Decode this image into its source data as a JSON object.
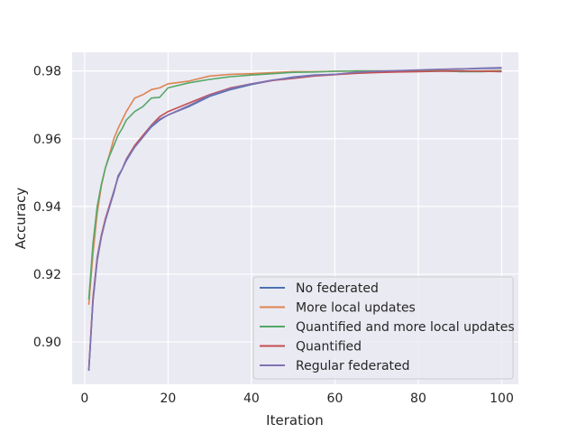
{
  "chart_data": {
    "type": "line",
    "xlabel": "Iteration",
    "ylabel": "Accuracy",
    "xlim": [
      -3,
      104
    ],
    "ylim": [
      0.8875,
      0.9855
    ],
    "xticks": [
      0,
      20,
      40,
      60,
      80,
      100
    ],
    "yticks": [
      0.9,
      0.92,
      0.94,
      0.96,
      0.98
    ],
    "xtick_labels": [
      "0",
      "20",
      "40",
      "60",
      "80",
      "100"
    ],
    "ytick_labels": [
      "0.90",
      "0.92",
      "0.94",
      "0.96",
      "0.98"
    ],
    "grid": true,
    "legend_position": "lower-right",
    "series": [
      {
        "name": "No federated",
        "color": "#4c72b0",
        "points": [
          [
            1,
            0.8915
          ],
          [
            2,
            0.912
          ],
          [
            3,
            0.924
          ],
          [
            4,
            0.931
          ],
          [
            5,
            0.936
          ],
          [
            6,
            0.94
          ],
          [
            7,
            0.944
          ],
          [
            8,
            0.949
          ],
          [
            9,
            0.951
          ],
          [
            10,
            0.9535
          ],
          [
            12,
            0.9575
          ],
          [
            14,
            0.9605
          ],
          [
            16,
            0.9635
          ],
          [
            18,
            0.9655
          ],
          [
            20,
            0.967
          ],
          [
            25,
            0.9695
          ],
          [
            30,
            0.9725
          ],
          [
            35,
            0.9745
          ],
          [
            40,
            0.976
          ],
          [
            45,
            0.9772
          ],
          [
            50,
            0.9782
          ],
          [
            55,
            0.9788
          ],
          [
            60,
            0.979
          ],
          [
            65,
            0.9795
          ],
          [
            70,
            0.9798
          ],
          [
            75,
            0.98
          ],
          [
            80,
            0.9802
          ],
          [
            85,
            0.9804
          ],
          [
            90,
            0.9806
          ],
          [
            95,
            0.9807
          ],
          [
            100,
            0.9808
          ]
        ]
      },
      {
        "name": "More local updates",
        "color": "#dd8452",
        "points": [
          [
            1,
            0.911
          ],
          [
            2,
            0.926
          ],
          [
            3,
            0.938
          ],
          [
            4,
            0.946
          ],
          [
            5,
            0.9515
          ],
          [
            6,
            0.9555
          ],
          [
            7,
            0.96
          ],
          [
            8,
            0.963
          ],
          [
            9,
            0.9655
          ],
          [
            10,
            0.968
          ],
          [
            12,
            0.972
          ],
          [
            14,
            0.973
          ],
          [
            16,
            0.9745
          ],
          [
            18,
            0.975
          ],
          [
            20,
            0.9762
          ],
          [
            25,
            0.977
          ],
          [
            30,
            0.9785
          ],
          [
            35,
            0.979
          ],
          [
            40,
            0.9792
          ],
          [
            45,
            0.9795
          ],
          [
            50,
            0.9798
          ],
          [
            55,
            0.9798
          ],
          [
            60,
            0.9799
          ],
          [
            65,
            0.98
          ],
          [
            70,
            0.98
          ],
          [
            75,
            0.98
          ],
          [
            80,
            0.98
          ],
          [
            85,
            0.9801
          ],
          [
            90,
            0.98
          ],
          [
            95,
            0.98
          ],
          [
            100,
            0.9801
          ]
        ]
      },
      {
        "name": "Quantified and more local updates",
        "color": "#55a868",
        "points": [
          [
            1,
            0.9125
          ],
          [
            2,
            0.929
          ],
          [
            3,
            0.94
          ],
          [
            4,
            0.9465
          ],
          [
            5,
            0.9515
          ],
          [
            6,
            0.955
          ],
          [
            7,
            0.958
          ],
          [
            8,
            0.961
          ],
          [
            9,
            0.963
          ],
          [
            10,
            0.9655
          ],
          [
            12,
            0.968
          ],
          [
            14,
            0.9695
          ],
          [
            16,
            0.972
          ],
          [
            18,
            0.9722
          ],
          [
            20,
            0.975
          ],
          [
            25,
            0.9765
          ],
          [
            30,
            0.9775
          ],
          [
            35,
            0.9783
          ],
          [
            40,
            0.9788
          ],
          [
            45,
            0.9792
          ],
          [
            50,
            0.9796
          ],
          [
            55,
            0.9797
          ],
          [
            60,
            0.9799
          ],
          [
            65,
            0.98
          ],
          [
            70,
            0.98
          ],
          [
            75,
            0.98
          ],
          [
            80,
            0.9799
          ],
          [
            85,
            0.98
          ],
          [
            90,
            0.9798
          ],
          [
            95,
            0.9798
          ],
          [
            100,
            0.98
          ]
        ]
      },
      {
        "name": "Quantified",
        "color": "#c44e52",
        "points": [
          [
            1,
            0.892
          ],
          [
            2,
            0.913
          ],
          [
            3,
            0.925
          ],
          [
            4,
            0.9315
          ],
          [
            5,
            0.9365
          ],
          [
            6,
            0.9405
          ],
          [
            7,
            0.9445
          ],
          [
            8,
            0.9485
          ],
          [
            9,
            0.951
          ],
          [
            10,
            0.954
          ],
          [
            12,
            0.958
          ],
          [
            14,
            0.961
          ],
          [
            16,
            0.964
          ],
          [
            18,
            0.9665
          ],
          [
            20,
            0.968
          ],
          [
            25,
            0.9705
          ],
          [
            30,
            0.973
          ],
          [
            35,
            0.975
          ],
          [
            40,
            0.9762
          ],
          [
            45,
            0.9772
          ],
          [
            50,
            0.9778
          ],
          [
            55,
            0.9785
          ],
          [
            60,
            0.9789
          ],
          [
            65,
            0.9793
          ],
          [
            70,
            0.9795
          ],
          [
            75,
            0.9797
          ],
          [
            80,
            0.9798
          ],
          [
            85,
            0.9799
          ],
          [
            90,
            0.98
          ],
          [
            95,
            0.9799
          ],
          [
            100,
            0.9798
          ]
        ]
      },
      {
        "name": "Regular federated",
        "color": "#8172b3",
        "points": [
          [
            1,
            0.8915
          ],
          [
            2,
            0.912
          ],
          [
            3,
            0.9245
          ],
          [
            4,
            0.931
          ],
          [
            5,
            0.936
          ],
          [
            6,
            0.94
          ],
          [
            7,
            0.9445
          ],
          [
            8,
            0.9485
          ],
          [
            9,
            0.951
          ],
          [
            10,
            0.9538
          ],
          [
            12,
            0.9575
          ],
          [
            14,
            0.9605
          ],
          [
            16,
            0.9638
          ],
          [
            18,
            0.9658
          ],
          [
            20,
            0.967
          ],
          [
            25,
            0.9698
          ],
          [
            30,
            0.9728
          ],
          [
            35,
            0.9748
          ],
          [
            40,
            0.9762
          ],
          [
            45,
            0.9773
          ],
          [
            50,
            0.978
          ],
          [
            55,
            0.9787
          ],
          [
            60,
            0.979
          ],
          [
            65,
            0.9796
          ],
          [
            70,
            0.9799
          ],
          [
            75,
            0.9801
          ],
          [
            80,
            0.9803
          ],
          [
            85,
            0.9805
          ],
          [
            90,
            0.9806
          ],
          [
            95,
            0.9808
          ],
          [
            100,
            0.981
          ]
        ]
      }
    ]
  }
}
